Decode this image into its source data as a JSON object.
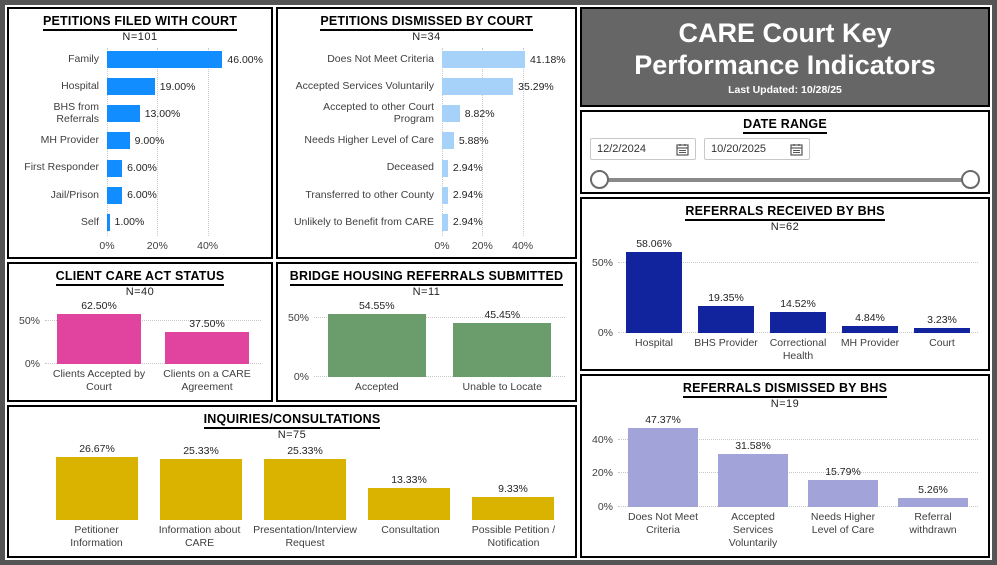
{
  "header": {
    "title": "CARE Court Key Performance Indicators",
    "last_updated": "Last Updated: 10/28/25",
    "bg_color": "#666666",
    "text_color": "#FFFFFF"
  },
  "date_range": {
    "title": "DATE RANGE",
    "start_date": "12/2/2024",
    "end_date": "10/20/2025"
  },
  "chart_data": [
    {
      "id": "petitions-filed-with-court",
      "type": "bar",
      "orientation": "horizontal",
      "title": "PETITIONS FILED WITH COURT",
      "n_label": "N=101",
      "categories": [
        "Family",
        "Hospital",
        "BHS from Referrals",
        "MH Provider",
        "First Responder",
        "Jail/Prison",
        "Self"
      ],
      "values": [
        46,
        19,
        13,
        9,
        6,
        6,
        1
      ],
      "value_labels": [
        "46.00%",
        "19.00%",
        "13.00%",
        "9.00%",
        "6.00%",
        "6.00%",
        "1.00%"
      ],
      "color": "#118DFF",
      "axis_max": 62,
      "grid": true,
      "ticks": [
        {
          "value": 0,
          "label": "0%"
        },
        {
          "value": 20,
          "label": "20%"
        },
        {
          "value": 40,
          "label": "40%"
        }
      ]
    },
    {
      "id": "petitions-dismissed-by-court",
      "type": "bar",
      "orientation": "horizontal",
      "title": "PETITIONS DISMISSED BY COURT",
      "n_label": "N=34",
      "categories": [
        "Does Not Meet Criteria",
        "Accepted Services Voluntarily",
        "Accepted to other Court Program",
        "Needs Higher Level of Care",
        "Deceased",
        "Transferred to other County",
        "Unlikely to Benefit from CARE"
      ],
      "values": [
        41.18,
        35.29,
        8.82,
        5.88,
        2.94,
        2.94,
        2.94
      ],
      "value_labels": [
        "41.18%",
        "35.29%",
        "8.82%",
        "5.88%",
        "2.94%",
        "2.94%",
        "2.94%"
      ],
      "color": "#A6D1F8",
      "axis_max": 62,
      "grid": true,
      "ticks": [
        {
          "value": 0,
          "label": "0%"
        },
        {
          "value": 20,
          "label": "20%"
        },
        {
          "value": 40,
          "label": "40%"
        }
      ]
    },
    {
      "id": "client-care-act-status",
      "type": "bar",
      "orientation": "vertical",
      "title": "CLIENT CARE ACT STATUS",
      "n_label": "N=40",
      "categories": [
        "Clients Accepted by Court",
        "Clients on a CARE Agreement"
      ],
      "values": [
        62.5,
        37.5
      ],
      "value_labels": [
        "62.50%",
        "37.50%"
      ],
      "color": "#E0449E",
      "axis_max": 75,
      "grid": true,
      "ticks": [
        {
          "value": 50,
          "label": "50%"
        },
        {
          "value": 0,
          "label": "0%"
        }
      ]
    },
    {
      "id": "bridge-housing-referrals-submitted",
      "type": "bar",
      "orientation": "vertical",
      "title": "BRIDGE HOUSING REFERRALS SUBMITTED",
      "n_label": "N=11",
      "categories": [
        "Accepted",
        "Unable to Locate"
      ],
      "values": [
        54.55,
        45.45
      ],
      "value_labels": [
        "54.55%",
        "45.45%"
      ],
      "color": "#6B9C6B",
      "axis_max": 65,
      "grid": true,
      "ticks": [
        {
          "value": 50,
          "label": "50%"
        },
        {
          "value": 0,
          "label": "0%"
        }
      ]
    },
    {
      "id": "inquiries-consultations",
      "type": "bar",
      "orientation": "vertical",
      "title": "INQUIRIES/CONSULTATIONS",
      "n_label": "N=75",
      "categories": [
        "Petitioner Information",
        "Information about CARE",
        "Presentation/Interview Request",
        "Consultation",
        "Possible Petition / Notification"
      ],
      "values": [
        26.67,
        25.33,
        25.33,
        13.33,
        9.33
      ],
      "value_labels": [
        "26.67%",
        "25.33%",
        "25.33%",
        "13.33%",
        "9.33%"
      ],
      "color": "#D9B300",
      "axis_max": 32,
      "grid": false,
      "ticks": []
    },
    {
      "id": "referrals-received-by-bhs",
      "type": "bar",
      "orientation": "vertical",
      "title": "REFERRALS RECEIVED BY BHS",
      "n_label": "N=62",
      "categories": [
        "Hospital",
        "BHS Provider",
        "Correctional Health",
        "MH Provider",
        "Court"
      ],
      "values": [
        58.06,
        19.35,
        14.52,
        4.84,
        3.23
      ],
      "value_labels": [
        "58.06%",
        "19.35%",
        "14.52%",
        "4.84%",
        "3.23%"
      ],
      "color": "#12239E",
      "axis_max": 70,
      "grid": true,
      "ticks": [
        {
          "value": 50,
          "label": "50%"
        },
        {
          "value": 0,
          "label": "0%"
        }
      ]
    },
    {
      "id": "referrals-dismissed-by-bhs",
      "type": "bar",
      "orientation": "vertical",
      "title": "REFERRALS DISMISSED BY BHS",
      "n_label": "N=19",
      "categories": [
        "Does Not Meet Criteria",
        "Accepted Services Voluntarily",
        "Needs Higher Level of Care",
        "Referral withdrawn"
      ],
      "values": [
        47.37,
        31.58,
        15.79,
        5.26
      ],
      "value_labels": [
        "47.37%",
        "31.58%",
        "15.79%",
        "5.26%"
      ],
      "color": "#A1A3D9",
      "axis_max": 57,
      "grid": true,
      "ticks": [
        {
          "value": 40,
          "label": "40%"
        },
        {
          "value": 20,
          "label": "20%"
        },
        {
          "value": 0,
          "label": "0%"
        }
      ]
    }
  ]
}
